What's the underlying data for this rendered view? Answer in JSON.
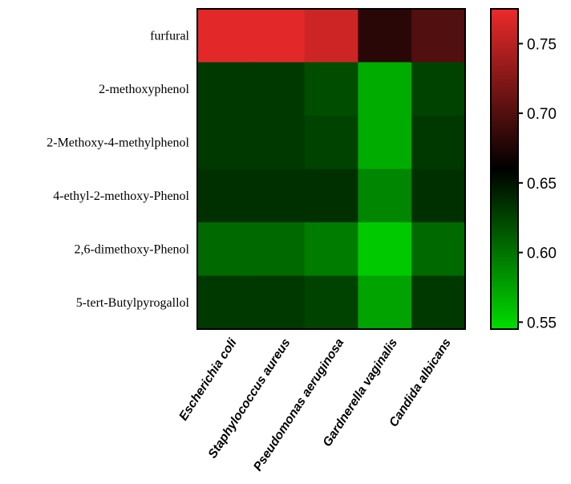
{
  "chart_data": {
    "type": "heatmap",
    "rows": [
      "furfural",
      "2-methoxyphenol",
      "2-Methoxy-4-methylphenol",
      "4-ethyl-2-methoxy-Phenol",
      "2,6-dimethoxy-Phenol",
      "5-tert-Butylpyrogallol"
    ],
    "columns": [
      "Escherichia coli",
      "Staphylococcus aureus",
      "Pseudomonas aeruginosa",
      "Gardnerella vaginalis",
      "Candida albicans"
    ],
    "values": [
      [
        0.77,
        0.77,
        0.76,
        0.68,
        0.7
      ],
      [
        0.63,
        0.63,
        0.62,
        0.57,
        0.625
      ],
      [
        0.63,
        0.63,
        0.625,
        0.57,
        0.63
      ],
      [
        0.635,
        0.635,
        0.635,
        0.59,
        0.635
      ],
      [
        0.605,
        0.605,
        0.595,
        0.555,
        0.605
      ],
      [
        0.63,
        0.63,
        0.625,
        0.575,
        0.63
      ]
    ],
    "colorbar": {
      "range": [
        0.545,
        0.775
      ],
      "ticks": [
        "0.75",
        "0.70",
        "0.65",
        "0.60",
        "0.55"
      ],
      "tick_values": [
        0.75,
        0.7,
        0.65,
        0.6,
        0.55
      ],
      "colors": {
        "low": "#00dc00",
        "mid": "#000000",
        "high": "#ec2a2a"
      },
      "mid_value": 0.66
    }
  }
}
